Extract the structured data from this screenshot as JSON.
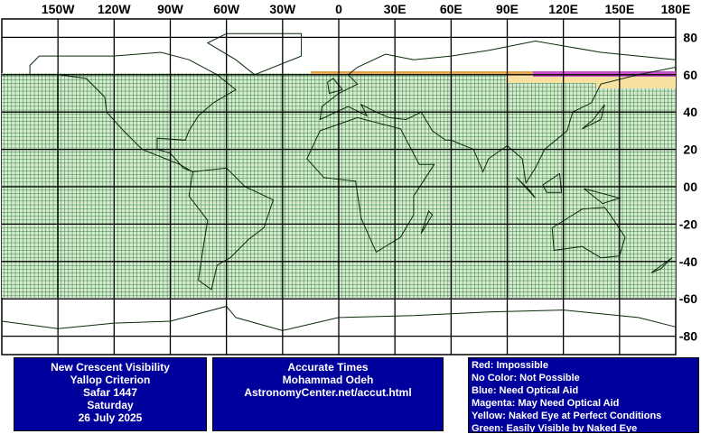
{
  "map": {
    "longitude_labels": [
      "150W",
      "120W",
      "90W",
      "60W",
      "30W",
      "0",
      "30E",
      "60E",
      "90E",
      "120E",
      "150E",
      "180E"
    ],
    "latitude_labels": [
      "80",
      "60",
      "40",
      "20",
      "00",
      "-20",
      "-40",
      "-60",
      "-80"
    ]
  },
  "info_box": {
    "lines": [
      "New Crescent Visibility",
      "Yallop Criterion",
      "Safar 1447",
      "Saturday",
      "26 July 2025"
    ]
  },
  "credits": {
    "lines": [
      "Accurate Times",
      "Mohammad Odeh",
      "AstronomyCenter.net/accut.html"
    ]
  },
  "legend": {
    "items": [
      "Red: Impossible",
      "No Color: Not Possible",
      "Blue: Need Optical Aid",
      "Magenta: May Need Optical Aid",
      "Yellow: Naked Eye at Perfect Conditions",
      "Green: Easily Visible by Naked Eye"
    ]
  }
}
